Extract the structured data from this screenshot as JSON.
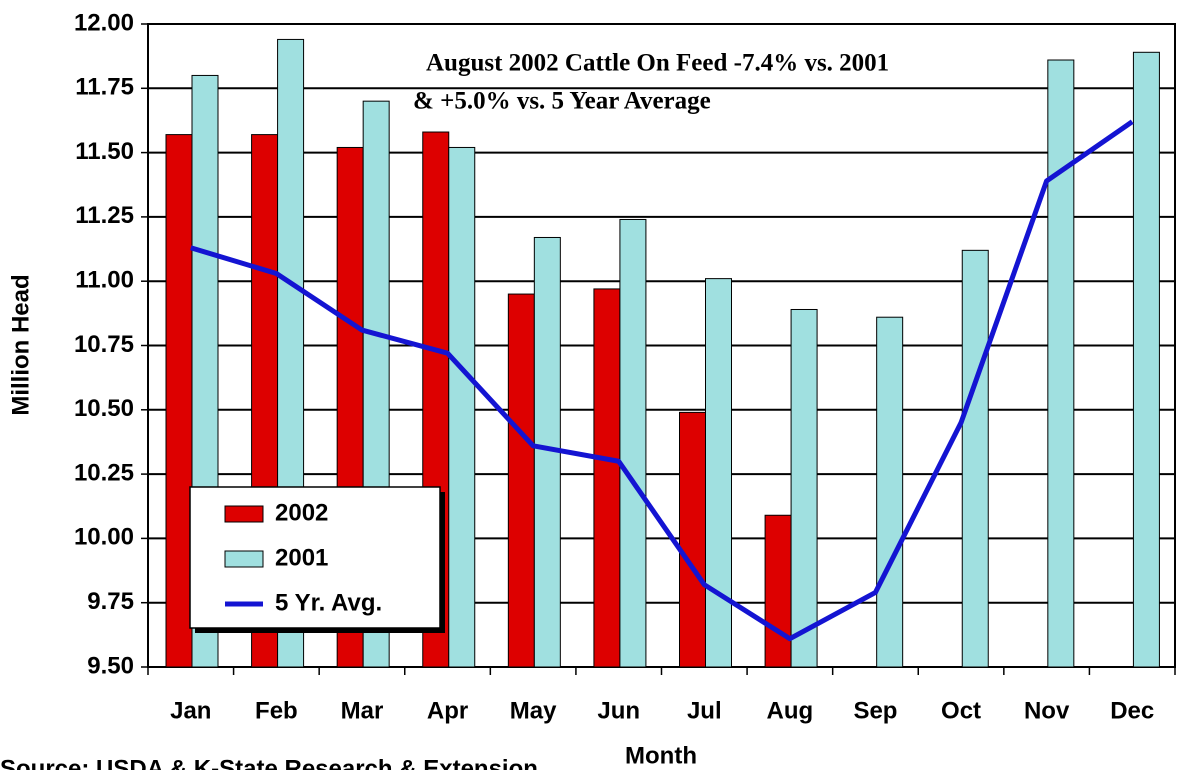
{
  "chart_data": {
    "type": "bar",
    "annotation": [
      "August 2002 Cattle On Feed -7.4% vs. 2001",
      "& +5.0% vs. 5 Year Average"
    ],
    "xlabel": "Month",
    "ylabel": "Million Head",
    "source": "Source:  USDA & K-State Research & Extension",
    "categories": [
      "Jan",
      "Feb",
      "Mar",
      "Apr",
      "May",
      "Jun",
      "Jul",
      "Aug",
      "Sep",
      "Oct",
      "Nov",
      "Dec"
    ],
    "series": [
      {
        "name": "2002",
        "color": "#dd0000",
        "type": "bar",
        "values": [
          11.57,
          11.57,
          11.52,
          11.58,
          10.95,
          10.97,
          10.49,
          10.09,
          null,
          null,
          null,
          null
        ]
      },
      {
        "name": "2001",
        "color": "#a0e0e0",
        "type": "bar",
        "values": [
          11.8,
          11.94,
          11.7,
          11.52,
          11.17,
          11.24,
          11.01,
          10.89,
          10.86,
          11.12,
          11.86,
          11.89
        ]
      },
      {
        "name": "5 Yr. Avg.",
        "color": "#1414d2",
        "type": "line",
        "values": [
          11.13,
          11.03,
          10.81,
          10.72,
          10.36,
          10.3,
          9.82,
          9.61,
          9.79,
          10.45,
          11.39,
          11.62
        ]
      }
    ],
    "ylim": [
      9.5,
      12.0
    ],
    "yticks": [
      {
        "value": 9.5,
        "label": "9.50"
      },
      9.75,
      {
        "value": 10.0,
        "label": "10.00"
      },
      10.25,
      {
        "value": 10.5,
        "label": "10.50"
      },
      10.75,
      {
        "value": 11.0,
        "label": "11.00"
      },
      11.25,
      {
        "value": 11.5,
        "label": "11.50"
      },
      11.75,
      {
        "value": 12.0,
        "label": "12.00"
      }
    ],
    "grid": true,
    "legend": "lower left"
  }
}
